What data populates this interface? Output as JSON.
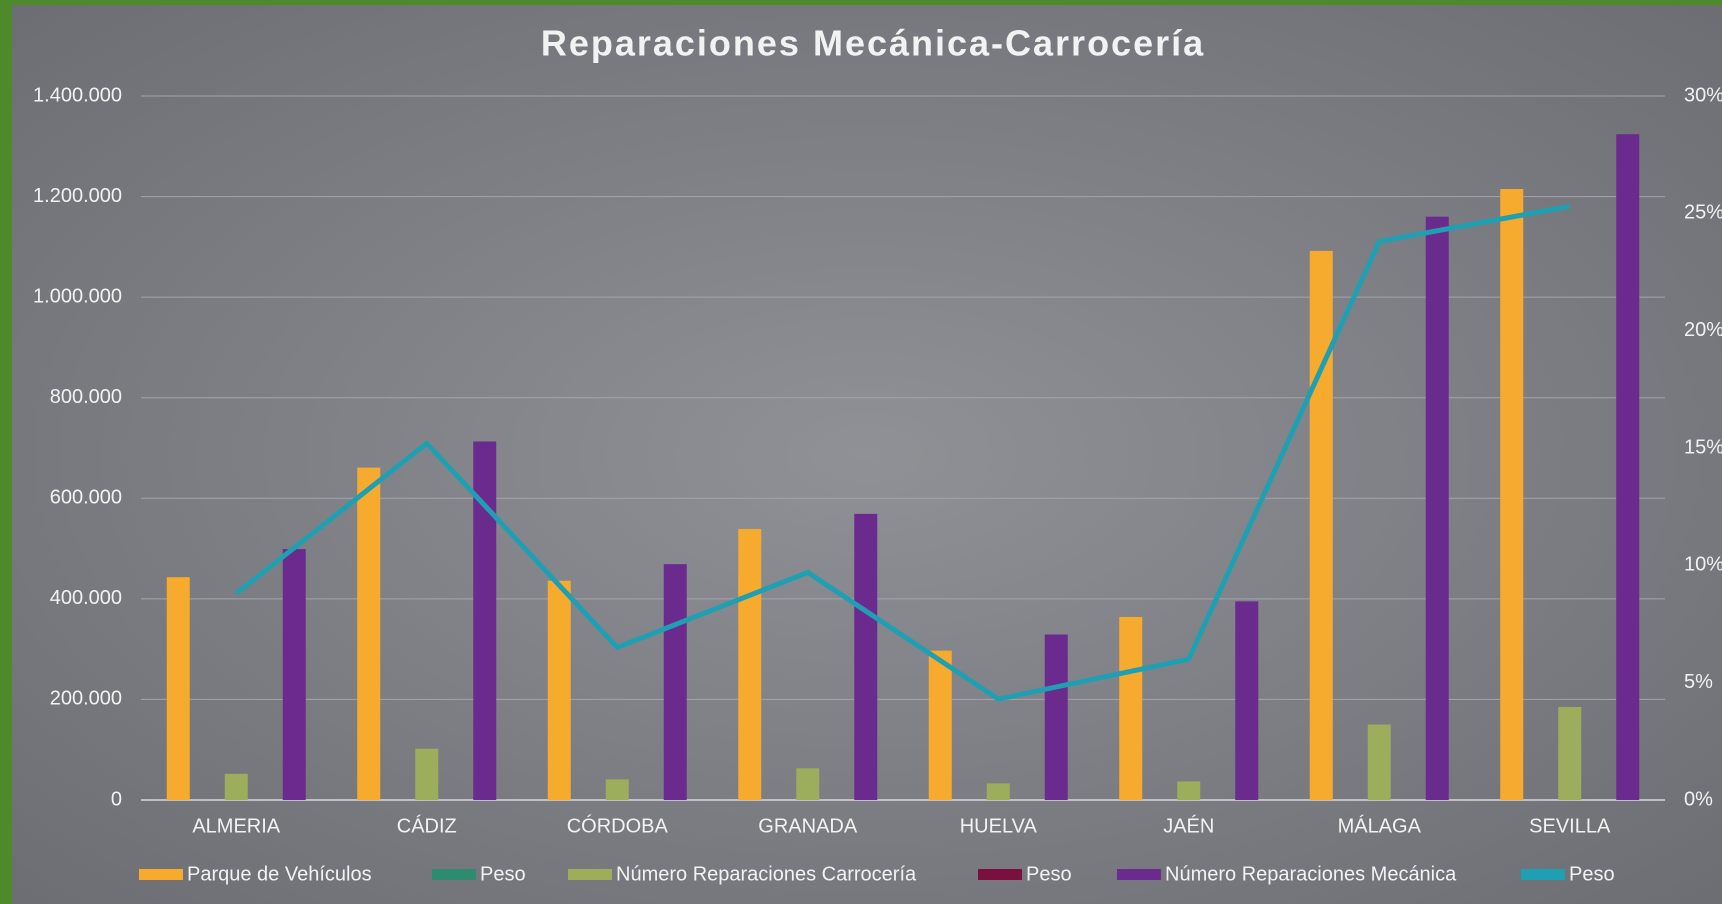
{
  "chart_data": {
    "type": "bar",
    "title": "Reparaciones Mecánica-Carrocería",
    "categories": [
      "ALMERIA",
      "CÁDIZ",
      "CÓRDOBA",
      "GRANADA",
      "HUELVA",
      "JAÉN",
      "MÁLAGA",
      "SEVILLA"
    ],
    "series": [
      {
        "name": "Parque de Vehículos",
        "type": "bar",
        "color": "#f7ab2e",
        "values": [
          443000,
          661000,
          436000,
          539000,
          297000,
          364000,
          1092000,
          1215000
        ]
      },
      {
        "name": "Peso",
        "type": "bar",
        "color": "#2e8b6e",
        "values": [
          null,
          null,
          null,
          null,
          null,
          null,
          null,
          null
        ]
      },
      {
        "name": "Número Reparaciones Carrocería",
        "type": "bar",
        "color": "#9cae5c",
        "values": [
          52000,
          102000,
          41000,
          63000,
          33000,
          37000,
          150000,
          185000
        ]
      },
      {
        "name": "Peso",
        "type": "bar",
        "color": "#7a1040",
        "values": [
          null,
          null,
          null,
          null,
          null,
          null,
          null,
          null
        ]
      },
      {
        "name": "Número Reparaciones Mecánica",
        "type": "bar",
        "color": "#6b2b8e",
        "values": [
          499000,
          713000,
          469000,
          569000,
          329000,
          395000,
          1160000,
          1324000
        ]
      },
      {
        "name": "Peso",
        "type": "line",
        "axis": "y2",
        "color": "#1fa0b2",
        "values": [
          8.8,
          15.2,
          6.5,
          9.7,
          4.3,
          6.0,
          23.8,
          25.3
        ]
      }
    ],
    "ylim": [
      0,
      1400000
    ],
    "yticks": [
      0,
      {
        "value": 200000,
        "label": "200.000"
      },
      {
        "value": 400000,
        "label": "400.000"
      },
      {
        "value": 600000,
        "label": "600.000"
      },
      {
        "value": 800000,
        "label": "800.000"
      },
      {
        "value": 1000000,
        "label": "1.000.000"
      },
      {
        "value": 1200000,
        "label": "1.200.000"
      },
      {
        "value": 1400000,
        "label": "1.400.000"
      }
    ],
    "y2lim": [
      0,
      30
    ],
    "y2ticks": [
      {
        "value": 0,
        "label": "0%"
      },
      {
        "value": 5,
        "label": "5%"
      },
      {
        "value": 10,
        "label": "10%"
      },
      {
        "value": 15,
        "label": "15%"
      },
      {
        "value": 20,
        "label": "20%"
      },
      {
        "value": 25,
        "label": "25%"
      },
      {
        "value": 30,
        "label": "30%"
      }
    ],
    "grid": true,
    "legend": "bottom"
  }
}
